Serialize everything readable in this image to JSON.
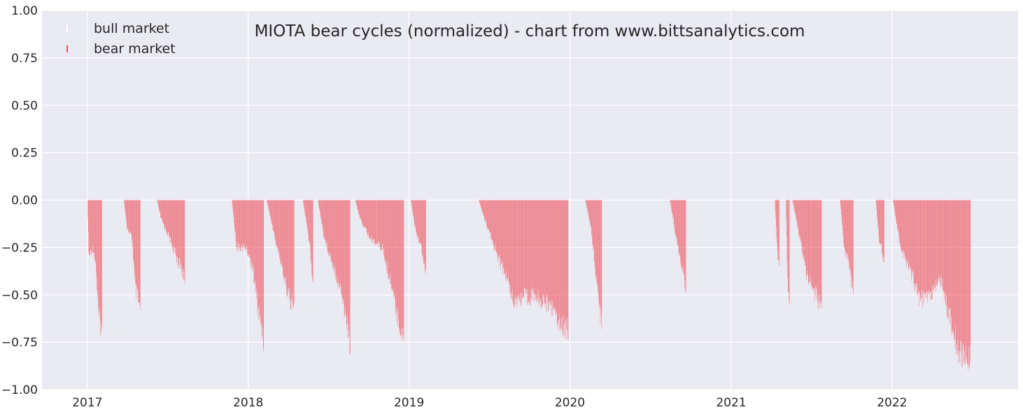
{
  "chart_data": {
    "type": "bar",
    "title": "MIOTA bear cycles (normalized)  - chart from www.bittsanalytics.com",
    "xlabel": "",
    "ylabel": "",
    "x_range": [
      "2016-09-20",
      "2022-10-14"
    ],
    "ylim": [
      -1.0,
      1.0
    ],
    "grid": true,
    "legend_position": "top-left",
    "y_ticks": [
      {
        "value": 1.0,
        "label": "1.00"
      },
      {
        "value": 0.75,
        "label": "0.75"
      },
      {
        "value": 0.5,
        "label": "0.50"
      },
      {
        "value": 0.25,
        "label": "0.25"
      },
      {
        "value": 0.0,
        "label": "0.00"
      },
      {
        "value": -0.25,
        "label": "−0.25"
      },
      {
        "value": -0.5,
        "label": "−0.50"
      },
      {
        "value": -0.75,
        "label": "−0.75"
      },
      {
        "value": -1.0,
        "label": "−1.00"
      }
    ],
    "x_ticks": [
      {
        "date": "2017-01-01",
        "label": "2017"
      },
      {
        "date": "2018-01-01",
        "label": "2018"
      },
      {
        "date": "2019-01-01",
        "label": "2019"
      },
      {
        "date": "2020-01-01",
        "label": "2020"
      },
      {
        "date": "2021-01-01",
        "label": "2021"
      },
      {
        "date": "2022-01-01",
        "label": "2022"
      }
    ],
    "series": [
      {
        "name": "bull market",
        "color": "#ffffff",
        "points": []
      },
      {
        "name": "bear market",
        "color": "#f0515a",
        "episodes": [
          {
            "start": "2017-01-01",
            "end": "2017-02-03",
            "profile": [
              [
                0,
                0.0
              ],
              [
                0.1,
                0.3
              ],
              [
                0.4,
                0.25
              ],
              [
                0.6,
                0.35
              ],
              [
                0.75,
                0.6
              ],
              [
                1.0,
                0.69
              ]
            ]
          },
          {
            "start": "2017-03-25",
            "end": "2017-05-01",
            "profile": [
              [
                0,
                0.0
              ],
              [
                0.2,
                0.15
              ],
              [
                0.5,
                0.2
              ],
              [
                0.7,
                0.47
              ],
              [
                1.0,
                0.58
              ]
            ]
          },
          {
            "start": "2017-06-08",
            "end": "2017-08-10",
            "profile": [
              [
                0,
                0.0
              ],
              [
                0.15,
                0.1
              ],
              [
                0.45,
                0.2
              ],
              [
                0.7,
                0.3
              ],
              [
                0.85,
                0.35
              ],
              [
                1.0,
                0.42
              ]
            ]
          },
          {
            "start": "2017-11-25",
            "end": "2018-02-05",
            "profile": [
              [
                0,
                0.0
              ],
              [
                0.15,
                0.25
              ],
              [
                0.45,
                0.25
              ],
              [
                0.65,
                0.35
              ],
              [
                0.85,
                0.6
              ],
              [
                1.0,
                0.73
              ]
            ]
          },
          {
            "start": "2018-02-12",
            "end": "2018-04-15",
            "profile": [
              [
                0,
                0.0
              ],
              [
                0.3,
                0.2
              ],
              [
                0.55,
                0.35
              ],
              [
                0.8,
                0.5
              ],
              [
                1.0,
                0.57
              ]
            ]
          },
          {
            "start": "2018-05-05",
            "end": "2018-05-28",
            "profile": [
              [
                0,
                0.0
              ],
              [
                0.3,
                0.1
              ],
              [
                0.7,
                0.25
              ],
              [
                1.0,
                0.45
              ]
            ]
          },
          {
            "start": "2018-06-08",
            "end": "2018-08-20",
            "profile": [
              [
                0,
                0.0
              ],
              [
                0.2,
                0.2
              ],
              [
                0.5,
                0.35
              ],
              [
                0.75,
                0.5
              ],
              [
                0.9,
                0.65
              ],
              [
                1.0,
                0.77
              ]
            ]
          },
          {
            "start": "2018-09-01",
            "end": "2018-12-20",
            "profile": [
              [
                0,
                0.0
              ],
              [
                0.1,
                0.1
              ],
              [
                0.3,
                0.2
              ],
              [
                0.55,
                0.25
              ],
              [
                0.75,
                0.45
              ],
              [
                0.9,
                0.65
              ],
              [
                1.0,
                0.72
              ]
            ]
          },
          {
            "start": "2019-01-05",
            "end": "2019-02-08",
            "profile": [
              [
                0,
                0.0
              ],
              [
                0.3,
                0.15
              ],
              [
                0.7,
                0.25
              ],
              [
                1.0,
                0.37
              ]
            ]
          },
          {
            "start": "2019-06-08",
            "end": "2019-12-28",
            "profile": [
              [
                0,
                0.0
              ],
              [
                0.1,
                0.15
              ],
              [
                0.3,
                0.4
              ],
              [
                0.4,
                0.53
              ],
              [
                0.6,
                0.5
              ],
              [
                0.8,
                0.55
              ],
              [
                0.92,
                0.65
              ],
              [
                1.0,
                0.69
              ]
            ]
          },
          {
            "start": "2020-02-05",
            "end": "2020-03-13",
            "profile": [
              [
                0,
                0.0
              ],
              [
                0.35,
                0.15
              ],
              [
                0.6,
                0.35
              ],
              [
                0.85,
                0.55
              ],
              [
                1.0,
                0.67
              ]
            ]
          },
          {
            "start": "2020-08-15",
            "end": "2020-09-20",
            "profile": [
              [
                0,
                0.0
              ],
              [
                0.3,
                0.15
              ],
              [
                0.7,
                0.35
              ],
              [
                1.0,
                0.45
              ]
            ]
          },
          {
            "start": "2021-04-10",
            "end": "2021-04-20",
            "profile": [
              [
                0,
                0.0
              ],
              [
                0.5,
                0.25
              ],
              [
                1.0,
                0.35
              ]
            ]
          },
          {
            "start": "2021-05-05",
            "end": "2021-05-13",
            "profile": [
              [
                0,
                0.0
              ],
              [
                0.5,
                0.4
              ],
              [
                1.0,
                0.6
              ]
            ]
          },
          {
            "start": "2021-05-20",
            "end": "2021-07-25",
            "profile": [
              [
                0,
                0.0
              ],
              [
                0.25,
                0.2
              ],
              [
                0.5,
                0.4
              ],
              [
                0.8,
                0.5
              ],
              [
                1.0,
                0.57
              ]
            ]
          },
          {
            "start": "2021-09-05",
            "end": "2021-10-05",
            "profile": [
              [
                0,
                0.0
              ],
              [
                0.3,
                0.25
              ],
              [
                0.7,
                0.35
              ],
              [
                1.0,
                0.47
              ]
            ]
          },
          {
            "start": "2021-11-25",
            "end": "2021-12-14",
            "profile": [
              [
                0,
                0.0
              ],
              [
                0.4,
                0.2
              ],
              [
                1.0,
                0.32
              ]
            ]
          },
          {
            "start": "2022-01-03",
            "end": "2022-06-28",
            "profile": [
              [
                0,
                0.0
              ],
              [
                0.1,
                0.25
              ],
              [
                0.25,
                0.4
              ],
              [
                0.35,
                0.53
              ],
              [
                0.5,
                0.5
              ],
              [
                0.6,
                0.4
              ],
              [
                0.72,
                0.6
              ],
              [
                0.85,
                0.8
              ],
              [
                1.0,
                0.83
              ]
            ]
          }
        ]
      }
    ]
  }
}
